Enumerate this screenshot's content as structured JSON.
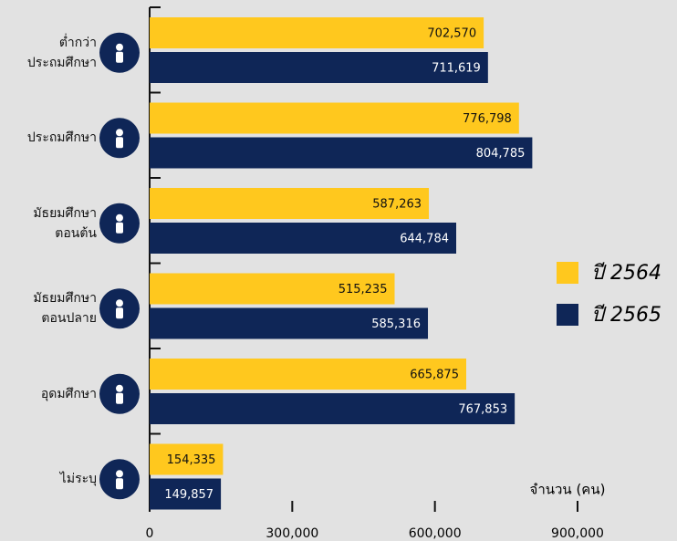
{
  "chart_data": {
    "type": "bar",
    "orientation": "horizontal",
    "categories": [
      "ต่ำกว่า\nประถมศึกษา",
      "ประถมศึกษา",
      "มัธยมศึกษา\nตอนต้น",
      "มัธยมศึกษา\nตอนปลาย",
      "อุดมศึกษา",
      "ไม่ระบุ"
    ],
    "series": [
      {
        "name": "ปี 2564",
        "color": "#ffc81e",
        "values": [
          702570,
          776798,
          587263,
          515235,
          665875,
          154335
        ],
        "value_labels": [
          "702,570",
          "776,798",
          "587,263",
          "515,235",
          "665,875",
          "154,335"
        ]
      },
      {
        "name": "ปี 2565",
        "color": "#0f2657",
        "values": [
          711619,
          804785,
          644784,
          585316,
          767853,
          149857
        ],
        "value_labels": [
          "711,619",
          "804,785",
          "644,784",
          "585,316",
          "767,853",
          "149,857"
        ]
      }
    ],
    "xlabel": "จำนวน (คน)",
    "xlim": [
      0,
      900000
    ],
    "xticks": [
      0,
      {
        "value": 300000,
        "label": "300,000"
      },
      {
        "value": 600000,
        "label": "600,000"
      },
      {
        "value": 900000,
        "label": "900,000"
      }
    ],
    "legend": "right"
  }
}
